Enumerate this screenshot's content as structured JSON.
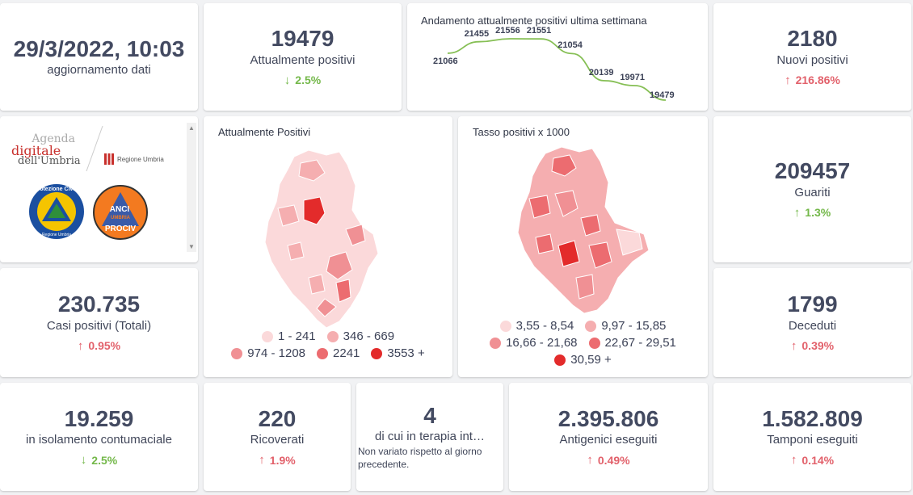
{
  "update": {
    "datetime": "29/3/2022, 10:03",
    "label": "aggiornamento dati"
  },
  "attualmente_positivi": {
    "value": "19479",
    "label": "Attualmente positivi",
    "change": "2.5%",
    "dir": "down"
  },
  "trend": {
    "title": "Andamento attualmente positivi ultima settimana",
    "values": [
      21066,
      21455,
      21556,
      21551,
      21054,
      20139,
      19971,
      19479
    ]
  },
  "nuovi_positivi": {
    "value": "2180",
    "label": "Nuovi positivi",
    "change": "216.86%",
    "dir": "up"
  },
  "logos": {
    "agenda_l1": "Agenda",
    "agenda_l2": "digitale",
    "agenda_l3": "dell'Umbria",
    "regione": "Regione Umbria",
    "pc_text": "Protezione Civile",
    "pc_sub": "Regione Umbria",
    "anci_l1": "ANCI",
    "anci_l2": "UMBRIA",
    "anci_l3": "PROCIV"
  },
  "map1": {
    "title": "Attualmente Positivi",
    "legend": [
      {
        "label": "1 - 241",
        "color": "#fbd9da"
      },
      {
        "label": "346 - 669",
        "color": "#f5aeb0"
      },
      {
        "label": "974 - 1208",
        "color": "#f09094"
      },
      {
        "label": "2241",
        "color": "#ec6c70"
      },
      {
        "label": "3553 +",
        "color": "#e32b2b"
      }
    ]
  },
  "map2": {
    "title": "Tasso positivi x 1000",
    "legend": [
      {
        "label": "3,55 - 8,54",
        "color": "#fbd9da"
      },
      {
        "label": "9,97 - 15,85",
        "color": "#f5aeb0"
      },
      {
        "label": "16,66 - 21,68",
        "color": "#f09094"
      },
      {
        "label": "22,67 - 29,51",
        "color": "#ec6c70"
      },
      {
        "label": "30,59 +",
        "color": "#e32b2b"
      }
    ]
  },
  "guariti": {
    "value": "209457",
    "label": "Guariti",
    "change": "1.3%",
    "dir": "down"
  },
  "casi_totali": {
    "value": "230.735",
    "label": "Casi positivi (Totali)",
    "change": "0.95%",
    "dir": "up"
  },
  "deceduti": {
    "value": "1799",
    "label": "Deceduti",
    "change": "0.39%",
    "dir": "up"
  },
  "isolamento": {
    "value": "19.259",
    "label": "in isolamento contumaciale",
    "change": "2.5%",
    "dir": "down"
  },
  "ricoverati": {
    "value": "220",
    "label": "Ricoverati",
    "change": "1.9%",
    "dir": "up"
  },
  "terapia": {
    "value": "4",
    "label": "di cui in terapia int…",
    "note": "Non variato rispetto al giorno precedente."
  },
  "antigenici": {
    "value": "2.395.806",
    "label": "Antigenici eseguiti",
    "change": "0.49%",
    "dir": "up"
  },
  "tamponi": {
    "value": "1.582.809",
    "label": "Tamponi eseguiti",
    "change": "0.14%",
    "dir": "up"
  }
}
